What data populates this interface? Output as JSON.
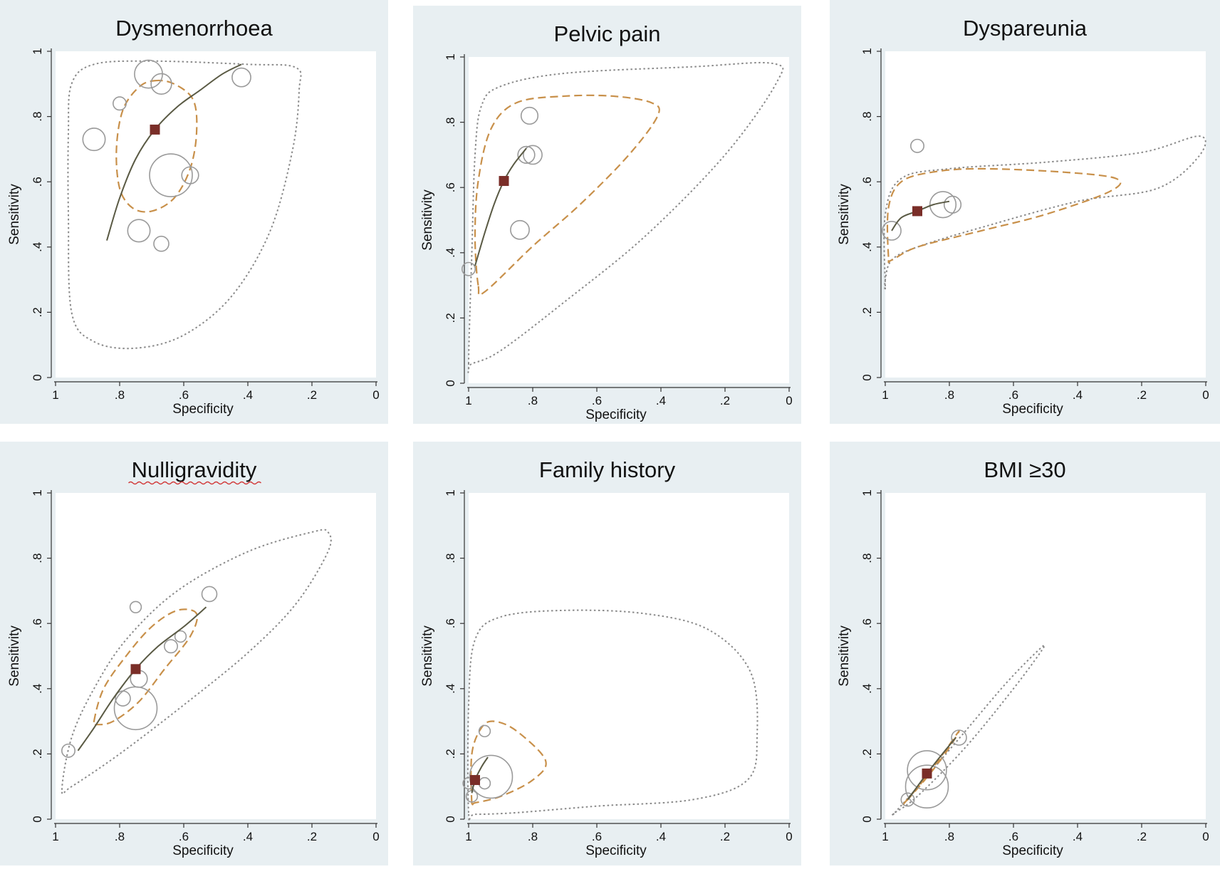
{
  "figure": {
    "panels": [
      {
        "title": "Dysmenorrhoea",
        "title_underlined": false
      },
      {
        "title": "Pelvic pain",
        "title_underlined": false
      },
      {
        "title": "Dyspareunia",
        "title_underlined": false
      },
      {
        "title": "Nulligravidity",
        "title_underlined": true
      },
      {
        "title": "Family history",
        "title_underlined": false
      },
      {
        "title": "BMI ≥30",
        "title_underlined": false
      }
    ]
  },
  "colors": {
    "panel_background": "#e8eff2",
    "plot_background": "#ffffff",
    "summary_point": "#7a2e28",
    "sroc_curve": "#5a5a44",
    "confidence_region": "#c8904a",
    "prediction_region": "#8a8a8a",
    "study_circles": "#9a9a9a"
  },
  "chart_data": [
    {
      "type": "scatter",
      "title": "Dysmenorrhoea",
      "xlabel": "Specificity",
      "ylabel": "Sensitivity",
      "x_reversed": true,
      "xlim": [
        1,
        0
      ],
      "ylim": [
        0,
        1
      ],
      "xticks": [
        "1",
        ".8",
        ".6",
        ".4",
        ".2",
        "0"
      ],
      "yticks": [
        "0",
        ".2",
        ".4",
        ".6",
        ".8",
        "1"
      ],
      "studies": [
        {
          "spec": 0.88,
          "sens": 0.73,
          "weight": 0.45
        },
        {
          "spec": 0.8,
          "sens": 0.84,
          "weight": 0.2
        },
        {
          "spec": 0.71,
          "sens": 0.93,
          "weight": 0.6
        },
        {
          "spec": 0.67,
          "sens": 0.9,
          "weight": 0.4
        },
        {
          "spec": 0.42,
          "sens": 0.92,
          "weight": 0.35
        },
        {
          "spec": 0.64,
          "sens": 0.62,
          "weight": 1.0
        },
        {
          "spec": 0.58,
          "sens": 0.62,
          "weight": 0.3
        },
        {
          "spec": 0.74,
          "sens": 0.45,
          "weight": 0.45
        },
        {
          "spec": 0.67,
          "sens": 0.41,
          "weight": 0.25
        }
      ],
      "summary": {
        "spec": 0.69,
        "sens": 0.76
      },
      "sroc_curve": [
        [
          0.84,
          0.42
        ],
        [
          0.8,
          0.55
        ],
        [
          0.75,
          0.67
        ],
        [
          0.69,
          0.76
        ],
        [
          0.62,
          0.83
        ],
        [
          0.55,
          0.88
        ],
        [
          0.48,
          0.93
        ],
        [
          0.42,
          0.96
        ]
      ],
      "confidence_region": [
        [
          0.69,
          0.91
        ],
        [
          0.63,
          0.9
        ],
        [
          0.57,
          0.85
        ],
        [
          0.56,
          0.75
        ],
        [
          0.58,
          0.64
        ],
        [
          0.63,
          0.55
        ],
        [
          0.7,
          0.51
        ],
        [
          0.76,
          0.52
        ],
        [
          0.8,
          0.58
        ],
        [
          0.81,
          0.7
        ],
        [
          0.79,
          0.82
        ],
        [
          0.74,
          0.89
        ]
      ],
      "prediction_region": [
        [
          0.95,
          0.9
        ],
        [
          0.88,
          0.96
        ],
        [
          0.7,
          0.97
        ],
        [
          0.4,
          0.96
        ],
        [
          0.25,
          0.95
        ],
        [
          0.24,
          0.88
        ],
        [
          0.26,
          0.7
        ],
        [
          0.33,
          0.45
        ],
        [
          0.45,
          0.25
        ],
        [
          0.6,
          0.13
        ],
        [
          0.75,
          0.09
        ],
        [
          0.88,
          0.11
        ],
        [
          0.95,
          0.2
        ],
        [
          0.96,
          0.5
        ],
        [
          0.96,
          0.75
        ]
      ]
    },
    {
      "type": "scatter",
      "title": "Pelvic pain",
      "xlabel": "Specificity",
      "ylabel": "Sensitivity",
      "x_reversed": true,
      "xlim": [
        1,
        0
      ],
      "ylim": [
        0,
        1
      ],
      "xticks": [
        "1",
        ".8",
        ".6",
        ".4",
        ".2",
        "0"
      ],
      "yticks": [
        "0",
        ".2",
        ".4",
        ".6",
        ".8",
        "1"
      ],
      "studies": [
        {
          "spec": 1.0,
          "sens": 0.35,
          "weight": 0.2
        },
        {
          "spec": 0.81,
          "sens": 0.82,
          "weight": 0.3
        },
        {
          "spec": 0.82,
          "sens": 0.7,
          "weight": 0.3
        },
        {
          "spec": 0.8,
          "sens": 0.7,
          "weight": 0.35
        },
        {
          "spec": 0.84,
          "sens": 0.47,
          "weight": 0.35
        }
      ],
      "summary": {
        "spec": 0.89,
        "sens": 0.62
      },
      "sroc_curve": [
        [
          0.98,
          0.36
        ],
        [
          0.95,
          0.46
        ],
        [
          0.92,
          0.55
        ],
        [
          0.89,
          0.62
        ],
        [
          0.86,
          0.67
        ],
        [
          0.82,
          0.72
        ]
      ],
      "confidence_region": [
        [
          0.97,
          0.3
        ],
        [
          0.98,
          0.45
        ],
        [
          0.97,
          0.62
        ],
        [
          0.93,
          0.78
        ],
        [
          0.85,
          0.86
        ],
        [
          0.7,
          0.88
        ],
        [
          0.55,
          0.88
        ],
        [
          0.43,
          0.86
        ],
        [
          0.41,
          0.82
        ],
        [
          0.5,
          0.7
        ],
        [
          0.65,
          0.55
        ],
        [
          0.8,
          0.42
        ],
        [
          0.95,
          0.28
        ]
      ],
      "prediction_region": [
        [
          1.0,
          0.06
        ],
        [
          0.99,
          0.4
        ],
        [
          0.98,
          0.7
        ],
        [
          0.96,
          0.85
        ],
        [
          0.9,
          0.91
        ],
        [
          0.7,
          0.95
        ],
        [
          0.3,
          0.97
        ],
        [
          0.05,
          0.98
        ],
        [
          0.04,
          0.92
        ],
        [
          0.2,
          0.7
        ],
        [
          0.45,
          0.45
        ],
        [
          0.7,
          0.25
        ],
        [
          0.9,
          0.1
        ],
        [
          0.99,
          0.06
        ]
      ]
    },
    {
      "type": "scatter",
      "title": "Dyspareunia",
      "xlabel": "Specificity",
      "ylabel": "Sensitivity",
      "x_reversed": true,
      "xlim": [
        1,
        0
      ],
      "ylim": [
        0,
        1
      ],
      "xticks": [
        "1",
        ".8",
        ".6",
        ".4",
        ".2",
        "0"
      ],
      "yticks": [
        "0",
        ".2",
        ".4",
        ".6",
        ".8",
        "1"
      ],
      "studies": [
        {
          "spec": 0.9,
          "sens": 0.71,
          "weight": 0.2
        },
        {
          "spec": 0.98,
          "sens": 0.45,
          "weight": 0.35
        },
        {
          "spec": 0.82,
          "sens": 0.53,
          "weight": 0.55
        },
        {
          "spec": 0.79,
          "sens": 0.53,
          "weight": 0.3
        }
      ],
      "summary": {
        "spec": 0.9,
        "sens": 0.51
      },
      "sroc_curve": [
        [
          0.98,
          0.45
        ],
        [
          0.95,
          0.49
        ],
        [
          0.9,
          0.51
        ],
        [
          0.85,
          0.53
        ],
        [
          0.8,
          0.54
        ]
      ],
      "confidence_region": [
        [
          0.99,
          0.37
        ],
        [
          0.99,
          0.52
        ],
        [
          0.95,
          0.6
        ],
        [
          0.85,
          0.63
        ],
        [
          0.7,
          0.64
        ],
        [
          0.45,
          0.63
        ],
        [
          0.28,
          0.61
        ],
        [
          0.3,
          0.57
        ],
        [
          0.5,
          0.5
        ],
        [
          0.7,
          0.45
        ],
        [
          0.9,
          0.4
        ],
        [
          0.98,
          0.36
        ]
      ],
      "prediction_region": [
        [
          1.0,
          0.28
        ],
        [
          1.0,
          0.5
        ],
        [
          0.95,
          0.61
        ],
        [
          0.8,
          0.64
        ],
        [
          0.5,
          0.66
        ],
        [
          0.2,
          0.69
        ],
        [
          0.02,
          0.74
        ],
        [
          0.02,
          0.68
        ],
        [
          0.15,
          0.58
        ],
        [
          0.4,
          0.54
        ],
        [
          0.7,
          0.46
        ],
        [
          0.9,
          0.4
        ],
        [
          0.98,
          0.36
        ],
        [
          1.0,
          0.3
        ]
      ]
    },
    {
      "type": "scatter",
      "title": "Nulligravidity",
      "xlabel": "Specificity",
      "ylabel": "Sensitivity",
      "x_reversed": true,
      "xlim": [
        1,
        0
      ],
      "ylim": [
        0,
        1
      ],
      "xticks": [
        "1",
        ".8",
        ".6",
        ".4",
        ".2",
        "0"
      ],
      "yticks": [
        "0",
        ".2",
        ".4",
        ".6",
        ".8",
        "1"
      ],
      "studies": [
        {
          "spec": 0.96,
          "sens": 0.21,
          "weight": 0.2
        },
        {
          "spec": 0.79,
          "sens": 0.37,
          "weight": 0.25
        },
        {
          "spec": 0.74,
          "sens": 0.43,
          "weight": 0.3
        },
        {
          "spec": 0.75,
          "sens": 0.34,
          "weight": 1.0
        },
        {
          "spec": 0.64,
          "sens": 0.53,
          "weight": 0.2
        },
        {
          "spec": 0.61,
          "sens": 0.56,
          "weight": 0.15
        },
        {
          "spec": 0.75,
          "sens": 0.65,
          "weight": 0.15
        },
        {
          "spec": 0.52,
          "sens": 0.69,
          "weight": 0.25
        }
      ],
      "summary": {
        "spec": 0.75,
        "sens": 0.46
      },
      "sroc_curve": [
        [
          0.93,
          0.21
        ],
        [
          0.88,
          0.28
        ],
        [
          0.82,
          0.37
        ],
        [
          0.75,
          0.46
        ],
        [
          0.68,
          0.53
        ],
        [
          0.6,
          0.59
        ],
        [
          0.53,
          0.65
        ]
      ],
      "confidence_region": [
        [
          0.88,
          0.3
        ],
        [
          0.85,
          0.4
        ],
        [
          0.78,
          0.5
        ],
        [
          0.7,
          0.59
        ],
        [
          0.62,
          0.64
        ],
        [
          0.56,
          0.63
        ],
        [
          0.58,
          0.56
        ],
        [
          0.66,
          0.46
        ],
        [
          0.74,
          0.36
        ],
        [
          0.82,
          0.3
        ],
        [
          0.87,
          0.29
        ]
      ],
      "prediction_region": [
        [
          0.98,
          0.09
        ],
        [
          0.95,
          0.25
        ],
        [
          0.88,
          0.4
        ],
        [
          0.78,
          0.55
        ],
        [
          0.62,
          0.7
        ],
        [
          0.4,
          0.82
        ],
        [
          0.2,
          0.88
        ],
        [
          0.15,
          0.88
        ],
        [
          0.15,
          0.82
        ],
        [
          0.25,
          0.66
        ],
        [
          0.4,
          0.51
        ],
        [
          0.6,
          0.35
        ],
        [
          0.8,
          0.2
        ],
        [
          0.95,
          0.1
        ]
      ]
    },
    {
      "type": "scatter",
      "title": "Family history",
      "xlabel": "Specificity",
      "ylabel": "Sensitivity",
      "x_reversed": true,
      "xlim": [
        1,
        0
      ],
      "ylim": [
        0,
        1
      ],
      "xticks": [
        "1",
        ".8",
        ".6",
        ".4",
        ".2",
        "0"
      ],
      "yticks": [
        "0",
        ".2",
        ".4",
        ".6",
        ".8",
        "1"
      ],
      "studies": [
        {
          "spec": 0.95,
          "sens": 0.27,
          "weight": 0.15
        },
        {
          "spec": 0.93,
          "sens": 0.13,
          "weight": 1.0
        },
        {
          "spec": 1.0,
          "sens": 0.11,
          "weight": 0.15
        },
        {
          "spec": 0.95,
          "sens": 0.11,
          "weight": 0.15
        },
        {
          "spec": 0.99,
          "sens": 0.07,
          "weight": 0.15
        }
      ],
      "summary": {
        "spec": 0.98,
        "sens": 0.12
      },
      "sroc_curve": [
        [
          0.99,
          0.08
        ],
        [
          0.98,
          0.12
        ],
        [
          0.96,
          0.16
        ],
        [
          0.94,
          0.19
        ]
      ],
      "confidence_region": [
        [
          0.99,
          0.05
        ],
        [
          0.99,
          0.2
        ],
        [
          0.96,
          0.28
        ],
        [
          0.92,
          0.3
        ],
        [
          0.85,
          0.27
        ],
        [
          0.76,
          0.18
        ],
        [
          0.8,
          0.12
        ],
        [
          0.9,
          0.07
        ],
        [
          0.98,
          0.05
        ]
      ],
      "prediction_region": [
        [
          1.0,
          0.02
        ],
        [
          1.0,
          0.35
        ],
        [
          0.98,
          0.55
        ],
        [
          0.9,
          0.62
        ],
        [
          0.7,
          0.64
        ],
        [
          0.45,
          0.63
        ],
        [
          0.25,
          0.58
        ],
        [
          0.12,
          0.45
        ],
        [
          0.1,
          0.25
        ],
        [
          0.13,
          0.12
        ],
        [
          0.3,
          0.06
        ],
        [
          0.6,
          0.04
        ],
        [
          0.85,
          0.02
        ],
        [
          0.98,
          0.015
        ]
      ]
    },
    {
      "type": "scatter",
      "title": "BMI ≥30",
      "xlabel": "Specificity",
      "ylabel": "Sensitivity",
      "x_reversed": true,
      "xlim": [
        1,
        0
      ],
      "ylim": [
        0,
        1
      ],
      "xticks": [
        "1",
        ".8",
        ".6",
        ".4",
        ".2",
        "0"
      ],
      "yticks": [
        "0",
        ".2",
        ".4",
        ".6",
        ".8",
        "1"
      ],
      "studies": [
        {
          "spec": 0.77,
          "sens": 0.25,
          "weight": 0.25
        },
        {
          "spec": 0.87,
          "sens": 0.15,
          "weight": 0.9
        },
        {
          "spec": 0.87,
          "sens": 0.1,
          "weight": 1.0
        },
        {
          "spec": 0.93,
          "sens": 0.06,
          "weight": 0.2
        }
      ],
      "summary": {
        "spec": 0.87,
        "sens": 0.14
      },
      "sroc_curve": [
        [
          0.93,
          0.06
        ],
        [
          0.9,
          0.1
        ],
        [
          0.87,
          0.14
        ],
        [
          0.83,
          0.19
        ],
        [
          0.78,
          0.25
        ]
      ],
      "confidence_region": [
        [
          0.94,
          0.05
        ],
        [
          0.88,
          0.12
        ],
        [
          0.82,
          0.2
        ],
        [
          0.77,
          0.27
        ],
        [
          0.8,
          0.22
        ],
        [
          0.86,
          0.14
        ],
        [
          0.93,
          0.06
        ]
      ],
      "prediction_region": [
        [
          0.97,
          0.02
        ],
        [
          0.88,
          0.12
        ],
        [
          0.75,
          0.27
        ],
        [
          0.62,
          0.42
        ],
        [
          0.52,
          0.52
        ],
        [
          0.51,
          0.52
        ],
        [
          0.6,
          0.4
        ],
        [
          0.75,
          0.22
        ],
        [
          0.9,
          0.07
        ],
        [
          0.97,
          0.02
        ]
      ]
    }
  ]
}
